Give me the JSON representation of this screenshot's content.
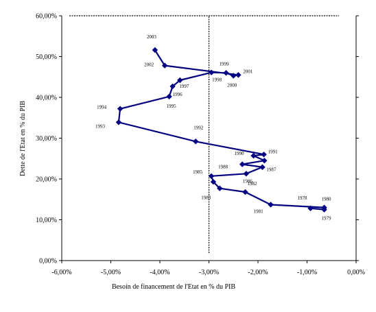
{
  "chart_data": {
    "type": "line",
    "xlabel": "Besoin de financement de l'Etat en % du PIB",
    "ylabel": "Dette de l'Etat en % du PIB",
    "xlim": [
      -0.06,
      0.0
    ],
    "ylim": [
      0.0,
      0.6
    ],
    "x_ticks": [
      "-6,00%",
      "-5,00%",
      "-4,00%",
      "-3,00%",
      "-2,00%",
      "-1,00%",
      "0,00%"
    ],
    "y_ticks": [
      "0,00%",
      "10,00%",
      "20,00%",
      "30,00%",
      "40,00%",
      "50,00%",
      "60,00%"
    ],
    "reference_lines": [
      {
        "orientation": "vertical",
        "value": -0.03,
        "style": "dashed"
      },
      {
        "orientation": "horizontal",
        "value": 0.6,
        "style": "dashed"
      }
    ],
    "series_color": "#000080",
    "series": [
      {
        "points": [
          {
            "year": "1978",
            "x": -0.0093,
            "y": 0.128
          },
          {
            "year": "1979",
            "x": -0.0065,
            "y": 0.125
          },
          {
            "year": "1980",
            "x": -0.0065,
            "y": 0.13
          },
          {
            "year": "1981",
            "x": -0.0174,
            "y": 0.137
          },
          {
            "year": "1982",
            "x": -0.0226,
            "y": 0.168
          },
          {
            "year": "1983",
            "x": -0.0278,
            "y": 0.177
          },
          {
            "year": "1984",
            "x": -0.0291,
            "y": 0.193
          },
          {
            "year": "1985",
            "x": -0.0295,
            "y": 0.207
          },
          {
            "year": "1986",
            "x": -0.0224,
            "y": 0.213
          },
          {
            "year": "1987",
            "x": -0.0191,
            "y": 0.229
          },
          {
            "year": "1988",
            "x": -0.0232,
            "y": 0.236
          },
          {
            "year": "1989",
            "x": -0.0187,
            "y": 0.245
          },
          {
            "year": "1990",
            "x": -0.0209,
            "y": 0.257
          },
          {
            "year": "1991",
            "x": -0.0188,
            "y": 0.26
          },
          {
            "year": "1992",
            "x": -0.0327,
            "y": 0.292
          },
          {
            "year": "1993",
            "x": -0.0484,
            "y": 0.339
          },
          {
            "year": "1994",
            "x": -0.0481,
            "y": 0.372
          },
          {
            "year": "1995",
            "x": -0.0381,
            "y": 0.402
          },
          {
            "year": "1996",
            "x": -0.0374,
            "y": 0.427
          },
          {
            "year": "1997",
            "x": -0.0359,
            "y": 0.442
          },
          {
            "year": "1998",
            "x": -0.0295,
            "y": 0.461
          },
          {
            "year": "1999",
            "x": -0.0265,
            "y": 0.46
          },
          {
            "year": "2000",
            "x": -0.025,
            "y": 0.453
          },
          {
            "year": "2001",
            "x": -0.024,
            "y": 0.455
          },
          {
            "year": "2002",
            "x": -0.039,
            "y": 0.478
          },
          {
            "year": "2003",
            "x": -0.041,
            "y": 0.516
          }
        ]
      }
    ]
  }
}
